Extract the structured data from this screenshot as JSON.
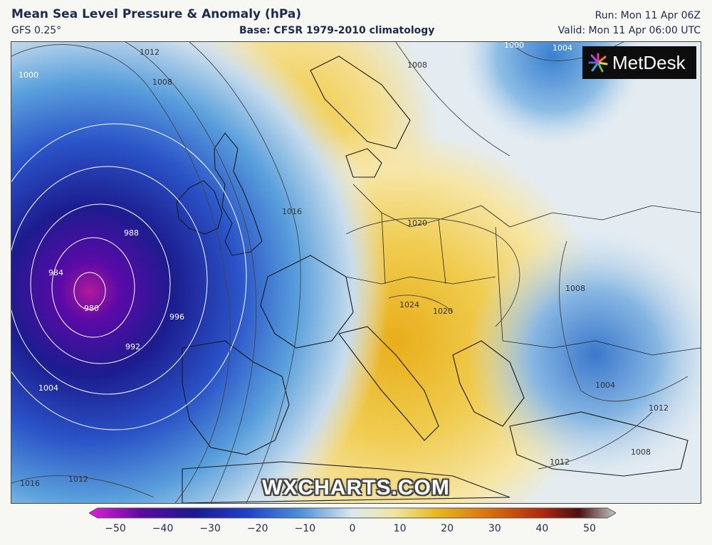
{
  "header": {
    "title": "Mean Sea Level Pressure & Anomaly (hPa)",
    "model": "GFS 0.25°",
    "base": "Base: CFSR 1979-2010 climatology",
    "run": "Run: Mon 11 Apr 06Z",
    "valid": "Valid: Mon 11 Apr 06:00 UTC"
  },
  "branding": {
    "logo_text": "MetDesk",
    "watermark": "WXCHARTS.COM"
  },
  "map": {
    "isobar_labels": [
      {
        "text": "1012"
      },
      {
        "text": "1008"
      },
      {
        "text": "1000"
      },
      {
        "text": "988"
      },
      {
        "text": "984"
      },
      {
        "text": "980"
      },
      {
        "text": "996"
      },
      {
        "text": "992"
      },
      {
        "text": "1004"
      },
      {
        "text": "1016"
      },
      {
        "text": "1012"
      },
      {
        "text": "1016"
      },
      {
        "text": "1020"
      },
      {
        "text": "1008"
      },
      {
        "text": "1000"
      },
      {
        "text": "1004"
      },
      {
        "text": "1008"
      },
      {
        "text": "1004"
      },
      {
        "text": "1012"
      },
      {
        "text": "1012"
      },
      {
        "text": "1008"
      },
      {
        "text": "1024"
      },
      {
        "text": "1020"
      }
    ]
  },
  "colorbar": {
    "ticks": [
      "−50",
      "−40",
      "−30",
      "−20",
      "−10",
      "0",
      "10",
      "20",
      "30",
      "40",
      "50"
    ],
    "colors": [
      "#e020d8",
      "#5a0aa0",
      "#1a1a90",
      "#2040c8",
      "#4a90d8",
      "#dce8f0",
      "#f0e6a0",
      "#e8b820",
      "#d87010",
      "#b02810",
      "#4a1010",
      "#c8c8c8"
    ]
  }
}
